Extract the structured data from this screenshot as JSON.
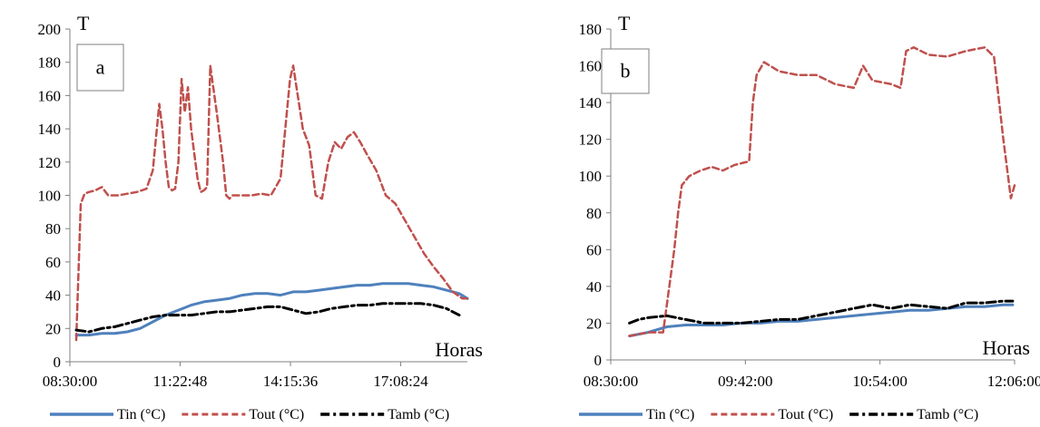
{
  "colors": {
    "tin": "#4f81bd",
    "tout": "#c0504d",
    "tamb": "#000000",
    "axis": "#808080"
  },
  "chart_data": [
    {
      "type": "line",
      "panel_label": "a",
      "ylabel": "T",
      "xlabel": "Horas",
      "ylim": [
        0,
        200
      ],
      "yticks": [
        0,
        20,
        40,
        60,
        80,
        100,
        120,
        140,
        160,
        180,
        200
      ],
      "xlim_hours": [
        8.5,
        18.88
      ],
      "xticks": [
        "08:30:00",
        "11:22:48",
        "14:15:36",
        "17:08:24"
      ],
      "legend_position": "bottom",
      "series": [
        {
          "name": "Tin (°C)",
          "style": "solid",
          "x": [
            "08:40",
            "09:00",
            "09:20",
            "09:40",
            "10:00",
            "10:20",
            "10:40",
            "11:00",
            "11:20",
            "11:40",
            "12:00",
            "12:20",
            "12:40",
            "13:00",
            "13:20",
            "13:40",
            "14:00",
            "14:20",
            "14:40",
            "15:00",
            "15:20",
            "15:40",
            "16:00",
            "16:20",
            "16:40",
            "17:00",
            "17:20",
            "17:40",
            "18:00",
            "18:20",
            "18:40",
            "18:53"
          ],
          "y": [
            16,
            16,
            17,
            17,
            18,
            20,
            24,
            28,
            31,
            34,
            36,
            37,
            38,
            40,
            41,
            41,
            40,
            42,
            42,
            43,
            44,
            45,
            46,
            46,
            47,
            47,
            47,
            46,
            45,
            43,
            41,
            38
          ]
        },
        {
          "name": "Tout (°C)",
          "style": "dashed",
          "x": [
            "08:40",
            "08:47",
            "08:53",
            "09:00",
            "09:10",
            "09:20",
            "09:30",
            "09:45",
            "10:00",
            "10:15",
            "10:30",
            "10:40",
            "10:50",
            "10:55",
            "11:00",
            "11:05",
            "11:10",
            "11:15",
            "11:20",
            "11:25",
            "11:30",
            "11:35",
            "11:40",
            "11:45",
            "11:50",
            "11:55",
            "12:00",
            "12:05",
            "12:10",
            "12:20",
            "12:30",
            "12:35",
            "12:40",
            "12:45",
            "12:50",
            "13:00",
            "13:15",
            "13:30",
            "13:45",
            "14:00",
            "14:15",
            "14:20",
            "14:25",
            "14:35",
            "14:45",
            "14:55",
            "15:05",
            "15:15",
            "15:25",
            "15:35",
            "15:45",
            "15:55",
            "16:05",
            "16:15",
            "16:30",
            "16:45",
            "17:00",
            "17:15",
            "17:30",
            "17:45",
            "18:00",
            "18:15",
            "18:30",
            "18:45",
            "18:53"
          ],
          "y": [
            13,
            95,
            101,
            102,
            103,
            105,
            100,
            100,
            101,
            102,
            104,
            115,
            155,
            140,
            120,
            105,
            103,
            104,
            120,
            170,
            150,
            165,
            140,
            125,
            110,
            102,
            103,
            105,
            178,
            150,
            120,
            100,
            98,
            100,
            100,
            100,
            100,
            101,
            100,
            110,
            170,
            178,
            165,
            140,
            130,
            100,
            98,
            120,
            132,
            128,
            135,
            138,
            132,
            125,
            115,
            100,
            95,
            85,
            75,
            65,
            57,
            50,
            42,
            38,
            38
          ]
        },
        {
          "name": "Tamb (°C)",
          "style": "dash-dot",
          "x": [
            "08:40",
            "09:00",
            "09:20",
            "09:40",
            "10:00",
            "10:20",
            "10:40",
            "11:00",
            "11:20",
            "11:40",
            "12:00",
            "12:20",
            "12:40",
            "13:00",
            "13:20",
            "13:40",
            "14:00",
            "14:20",
            "14:40",
            "15:00",
            "15:20",
            "15:40",
            "16:00",
            "16:20",
            "16:40",
            "17:00",
            "17:20",
            "17:40",
            "18:00",
            "18:20",
            "18:40"
          ],
          "y": [
            19,
            18,
            20,
            21,
            23,
            25,
            27,
            28,
            28,
            28,
            29,
            30,
            30,
            31,
            32,
            33,
            33,
            31,
            29,
            30,
            32,
            33,
            34,
            34,
            35,
            35,
            35,
            35,
            34,
            32,
            28
          ]
        }
      ]
    },
    {
      "type": "line",
      "panel_label": "b",
      "ylabel": "T",
      "xlabel": "Horas",
      "ylim": [
        0,
        180
      ],
      "yticks": [
        0,
        20,
        40,
        60,
        80,
        100,
        120,
        140,
        160,
        180
      ],
      "xlim_hours": [
        8.5,
        12.1
      ],
      "xticks": [
        "08:30:00",
        "09:42:00",
        "10:54:00",
        "12:06:00"
      ],
      "legend_position": "bottom",
      "series": [
        {
          "name": "Tin (°C)",
          "style": "solid",
          "x": [
            "08:40",
            "08:50",
            "09:00",
            "09:10",
            "09:20",
            "09:30",
            "09:40",
            "09:50",
            "10:00",
            "10:10",
            "10:20",
            "10:30",
            "10:40",
            "10:50",
            "11:00",
            "11:10",
            "11:20",
            "11:30",
            "11:40",
            "11:50",
            "12:00",
            "12:05"
          ],
          "y": [
            13,
            15,
            18,
            19,
            19,
            19,
            20,
            20,
            21,
            21,
            22,
            23,
            24,
            25,
            26,
            27,
            27,
            28,
            29,
            29,
            30,
            30
          ]
        },
        {
          "name": "Tout (°C)",
          "style": "dashed",
          "x": [
            "08:40",
            "08:50",
            "08:58",
            "09:00",
            "09:04",
            "09:06",
            "09:08",
            "09:12",
            "09:18",
            "09:24",
            "09:30",
            "09:36",
            "09:40",
            "09:44",
            "09:46",
            "09:48",
            "09:52",
            "10:00",
            "10:10",
            "10:20",
            "10:30",
            "10:40",
            "10:45",
            "10:50",
            "11:00",
            "11:05",
            "11:08",
            "11:12",
            "11:20",
            "11:30",
            "11:40",
            "11:50",
            "11:55",
            "12:00",
            "12:04",
            "12:06"
          ],
          "y": [
            13,
            15,
            15,
            30,
            60,
            80,
            95,
            100,
            103,
            105,
            103,
            106,
            107,
            108,
            140,
            155,
            162,
            157,
            155,
            155,
            150,
            148,
            160,
            152,
            150,
            148,
            168,
            170,
            166,
            165,
            168,
            170,
            165,
            120,
            88,
            95
          ]
        },
        {
          "name": "Tamb (°C)",
          "style": "dash-dot",
          "x": [
            "08:40",
            "08:45",
            "08:50",
            "09:00",
            "09:10",
            "09:20",
            "09:30",
            "09:40",
            "09:50",
            "10:00",
            "10:10",
            "10:20",
            "10:30",
            "10:40",
            "10:50",
            "11:00",
            "11:10",
            "11:20",
            "11:30",
            "11:40",
            "11:50",
            "12:00",
            "12:05"
          ],
          "y": [
            20,
            22,
            23,
            24,
            22,
            20,
            20,
            20,
            21,
            22,
            22,
            24,
            26,
            28,
            30,
            28,
            30,
            29,
            28,
            31,
            31,
            32,
            32
          ]
        }
      ]
    }
  ]
}
